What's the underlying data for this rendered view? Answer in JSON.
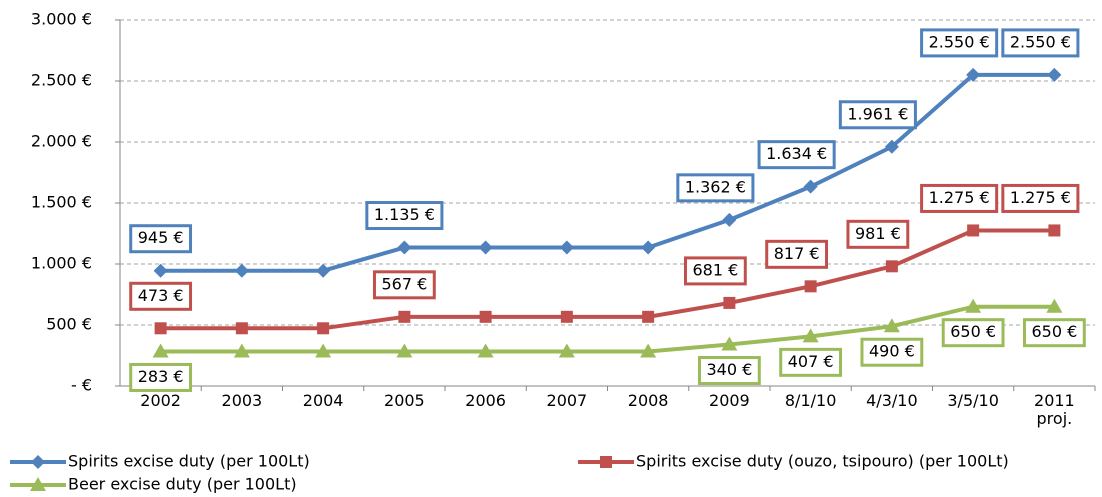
{
  "chart_data": {
    "type": "line",
    "categories": [
      "2002",
      "2003",
      "2004",
      "2005",
      "2006",
      "2007",
      "2008",
      "2009",
      "8/1/10",
      "4/3/10",
      "3/5/10",
      "2011 proj."
    ],
    "series": [
      {
        "name": "Spirits excise duty (per 100Lt)",
        "color": "#4f81bd",
        "marker": "diamond",
        "values": [
          945,
          945,
          945,
          1135,
          1135,
          1135,
          1135,
          1362,
          1634,
          1961,
          2550,
          2550
        ],
        "value_labels": [
          "945 €",
          null,
          null,
          "1.135 €",
          null,
          null,
          null,
          "1.362 €",
          "1.634 €",
          "1.961 €",
          "2.550 €",
          "2.550 €"
        ]
      },
      {
        "name": "Spirits excise duty (ouzo, tsipouro) (per 100Lt)",
        "color": "#c0504d",
        "marker": "square",
        "values": [
          473,
          473,
          473,
          567,
          567,
          567,
          567,
          681,
          817,
          981,
          1275,
          1275
        ],
        "value_labels": [
          "473 €",
          null,
          null,
          "567 €",
          null,
          null,
          null,
          "681 €",
          "817 €",
          "981 €",
          "1.275 €",
          "1.275 €"
        ]
      },
      {
        "name": "Beer excise duty (per 100Lt)",
        "color": "#9bbb59",
        "marker": "triangle",
        "values": [
          283,
          283,
          283,
          283,
          283,
          283,
          283,
          340,
          407,
          490,
          650,
          650
        ],
        "value_labels": [
          "283 €",
          null,
          null,
          null,
          null,
          null,
          null,
          "340 €",
          "407 €",
          "490 €",
          "650 €",
          "650 €"
        ]
      }
    ],
    "ylim": [
      0,
      3000
    ],
    "yticks": [
      {
        "value": 0,
        "label": "-   €"
      },
      {
        "value": 500,
        "label": "500 €"
      },
      {
        "value": 1000,
        "label": "1.000 €"
      },
      {
        "value": 1500,
        "label": "1.500 €"
      },
      {
        "value": 2000,
        "label": "2.000 €"
      },
      {
        "value": 2500,
        "label": "2.500 €"
      },
      {
        "value": 3000,
        "label": "3.000 €"
      }
    ],
    "grid": true,
    "legend": "bottom"
  }
}
